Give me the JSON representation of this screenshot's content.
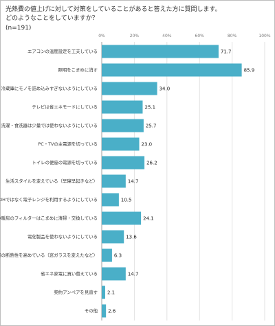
{
  "question": {
    "line1": "光熱費の値上げに対して対策をしていることがあると答えた方に質問します。",
    "line2": "どのようなことをしていますか？",
    "line3": "(n=191)"
  },
  "chart_data": {
    "type": "bar",
    "orientation": "horizontal",
    "categories": [
      "エアコンの温度設定を工夫している",
      "照明をこまめに消す",
      "冷蔵庫にモノを詰め込みすぎないようにしている",
      "テレビは省エネモードにしている",
      "洗濯・食洗器は少量では使わないようにしている",
      "PC・TVの主電源を切っている",
      "トイレの便座の電源を切っている",
      "生活スタイルを変えている（早寝早起きなど）",
      "料理はIHではなく電子レンジを利用するようにしている",
      "冷暖房のフィルターはこまめに清掃・交換している",
      "電化製品を使わないようにしている",
      "家屋の断熱性を高めている（窓ガラスを変えたなど）",
      "省エネ家電に買い替えている",
      "契約アンペアを見直す",
      "その他"
    ],
    "values": [
      71.7,
      85.9,
      34.0,
      25.1,
      25.7,
      23.0,
      26.2,
      14.7,
      10.5,
      24.1,
      13.6,
      6.3,
      14.7,
      2.1,
      2.6
    ],
    "value_labels": [
      "71.7",
      "85.9",
      "34.0",
      "25.1",
      "25.7",
      "23.0",
      "26.2",
      "14.7",
      "10.5",
      "24.1",
      "13.6",
      "6.3",
      "14.7",
      "2.1",
      "2.6"
    ],
    "xlim": [
      0,
      100
    ],
    "ticks": [
      "0%",
      "20%",
      "40%",
      "60%",
      "80%",
      "100%"
    ],
    "bar_color": "#4aafc8",
    "grid": true
  }
}
